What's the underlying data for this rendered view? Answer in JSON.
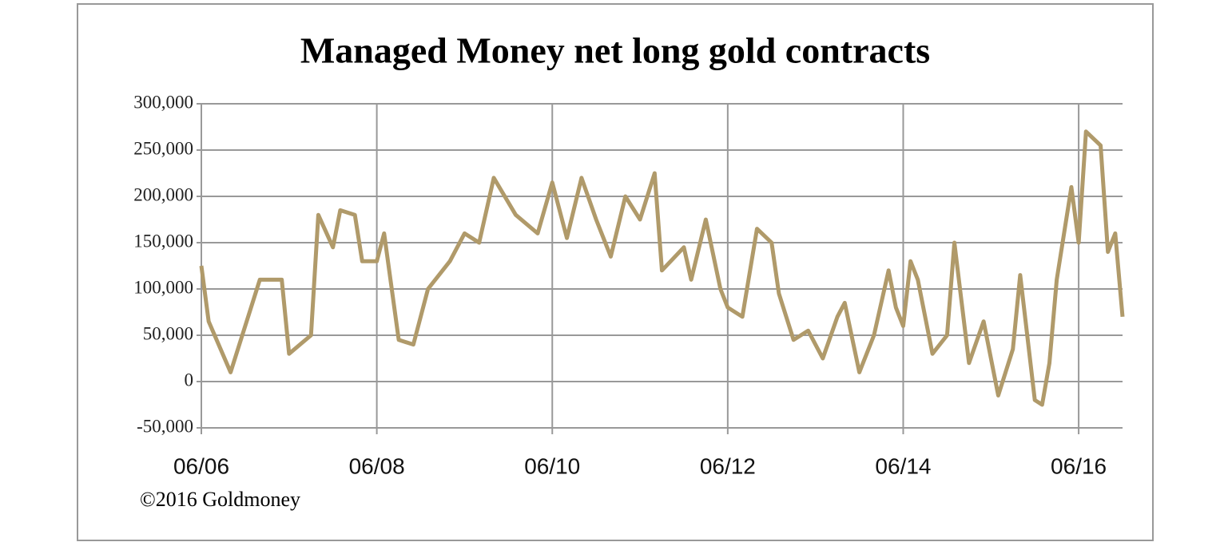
{
  "chart_data": {
    "type": "line",
    "title": "Managed Money net long gold contracts",
    "annotation": "©2016 Goldmoney",
    "x": [
      "06/06",
      "07/06",
      "10/06",
      "02/07",
      "05/07",
      "06/07",
      "09/07",
      "10/07",
      "12/07",
      "01/08",
      "03/08",
      "04/08",
      "06/08",
      "07/08",
      "09/08",
      "11/08",
      "01/09",
      "04/09",
      "06/09",
      "08/09",
      "10/09",
      "01/10",
      "04/10",
      "06/10",
      "08/10",
      "10/10",
      "12/10",
      "02/11",
      "04/11",
      "06/11",
      "08/11",
      "09/11",
      "12/11",
      "01/12",
      "03/12",
      "05/12",
      "06/12",
      "08/12",
      "10/12",
      "12/12",
      "01/13",
      "03/13",
      "05/13",
      "07/13",
      "09/13",
      "10/13",
      "12/13",
      "02/14",
      "04/14",
      "05/14",
      "06/14",
      "07/14",
      "08/14",
      "10/14",
      "12/14",
      "01/15",
      "03/15",
      "05/15",
      "07/15",
      "09/15",
      "10/15",
      "12/15",
      "01/16",
      "02/16",
      "03/16",
      "05/16",
      "06/16",
      "07/16",
      "09/16",
      "10/16",
      "11/16",
      "12/16"
    ],
    "series": [
      {
        "name": "Managed Money net long",
        "color": "#b09a6a",
        "values": [
          125000,
          65000,
          10000,
          110000,
          110000,
          30000,
          50000,
          180000,
          145000,
          185000,
          180000,
          130000,
          130000,
          160000,
          45000,
          40000,
          100000,
          130000,
          160000,
          150000,
          220000,
          180000,
          160000,
          215000,
          155000,
          220000,
          175000,
          135000,
          200000,
          175000,
          225000,
          120000,
          145000,
          110000,
          175000,
          100000,
          80000,
          70000,
          165000,
          150000,
          95000,
          45000,
          55000,
          25000,
          70000,
          85000,
          10000,
          50000,
          120000,
          80000,
          60000,
          130000,
          110000,
          30000,
          50000,
          150000,
          20000,
          65000,
          -15000,
          35000,
          115000,
          -20000,
          -25000,
          20000,
          110000,
          210000,
          150000,
          270000,
          255000,
          140000,
          160000,
          70000
        ]
      }
    ],
    "xlim": [
      "06/06",
      "12/16"
    ],
    "xticks": [
      "06/06",
      "06/08",
      "06/10",
      "06/12",
      "06/14",
      "06/16"
    ],
    "ylim": [
      -50000,
      300000
    ],
    "yticks": [
      {
        "value": -50000,
        "label": "-50,000"
      },
      0,
      {
        "value": 50000,
        "label": "50,000"
      },
      {
        "value": 100000,
        "label": "100,000"
      },
      {
        "value": 150000,
        "label": "150,000"
      },
      {
        "value": 200000,
        "label": "200,000"
      },
      {
        "value": 250000,
        "label": "250,000"
      },
      {
        "value": 300000,
        "label": "300,000"
      }
    ],
    "grid": true
  }
}
